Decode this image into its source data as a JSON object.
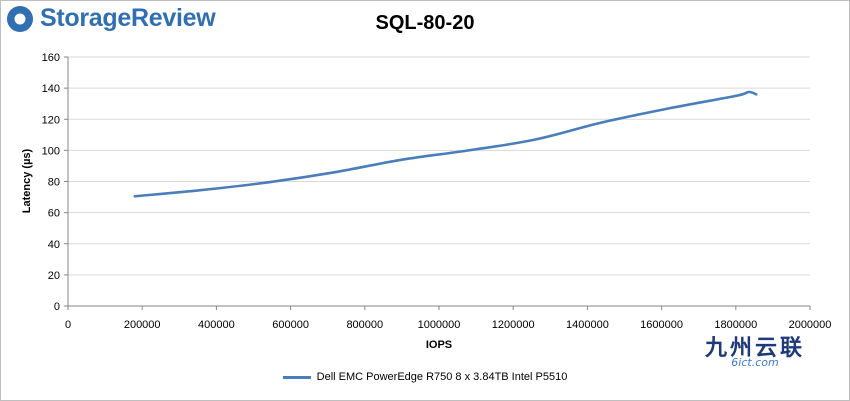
{
  "logo": {
    "text": "StorageReview"
  },
  "chart_data": {
    "type": "line",
    "title": "SQL-80-20",
    "xlabel": "IOPS",
    "ylabel": "Latency (µs)",
    "xlim": [
      0,
      2000000
    ],
    "ylim": [
      0,
      160
    ],
    "x_ticks": [
      0,
      200000,
      400000,
      600000,
      800000,
      1000000,
      1200000,
      1400000,
      1600000,
      1800000,
      2000000
    ],
    "y_ticks": [
      0,
      20,
      40,
      60,
      80,
      100,
      120,
      140,
      160
    ],
    "grid": "horizontal",
    "legend_position": "bottom",
    "series": [
      {
        "name": "Dell EMC PowerEdge R750 8 x 3.84TB Intel P5510",
        "color": "#4a7ebb",
        "x": [
          180000,
          360000,
          540000,
          720000,
          900000,
          1080000,
          1260000,
          1440000,
          1620000,
          1800000,
          1835000,
          1855000
        ],
        "y": [
          70.5,
          74.5,
          79.5,
          86,
          94,
          100,
          107,
          118,
          127,
          135,
          137.5,
          136
        ]
      }
    ]
  },
  "watermark": {
    "chinese": "九州云联",
    "latin": "6ict.com"
  }
}
